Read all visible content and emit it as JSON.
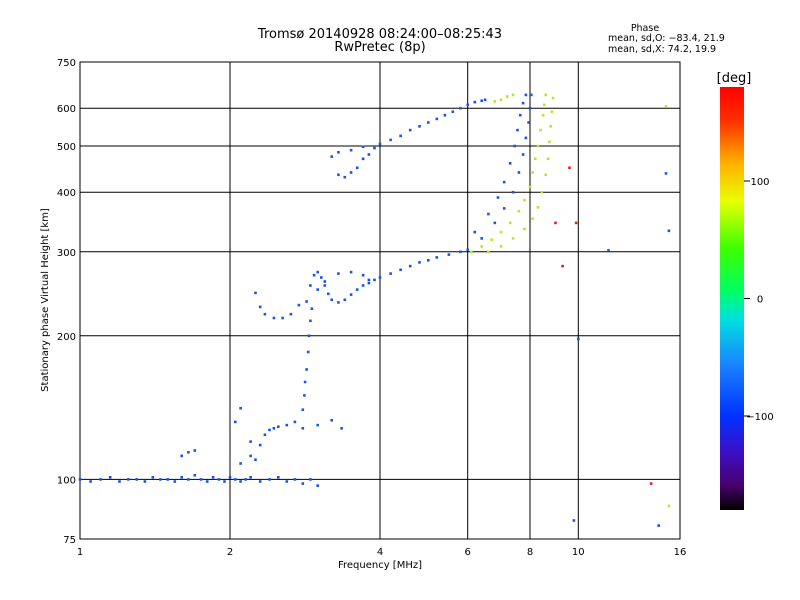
{
  "chart_data": {
    "type": "scatter",
    "title": "Tromsø 20140928 08:24:00–08:25:43",
    "subtitle": "RwPretec (8p)",
    "xlabel": "Frequency [MHz]",
    "ylabel": "Stationary phase Virtual Height [km]",
    "x_scale": "log2",
    "y_scale": "log",
    "xlim": [
      1,
      16
    ],
    "ylim": [
      75,
      750
    ],
    "x_ticks": [
      1,
      2,
      4,
      6,
      8,
      10,
      16
    ],
    "x_tick_labels": [
      "1",
      "2",
      "4",
      "6",
      "8",
      "10",
      "16"
    ],
    "y_ticks": [
      75,
      100,
      200,
      300,
      400,
      500,
      600,
      750
    ],
    "y_tick_labels": [
      "75",
      "100",
      "200",
      "300",
      "400",
      "500",
      "600",
      "750"
    ],
    "grid": true,
    "phase_info": {
      "title": "Phase",
      "line_o": "mean, sd,O: −83.4, 21.9",
      "line_x": "mean, sd,X:  74.2, 19.9"
    },
    "colorbar": {
      "label": "[deg]",
      "min": -180,
      "max": 180,
      "tick_values": [
        100,
        0,
        -100
      ],
      "tick_labels": [
        "100",
        "0",
        "−100"
      ]
    },
    "series": [
      {
        "name": "O",
        "color": "#1a55e6",
        "points": [
          [
            1.0,
            100
          ],
          [
            1.05,
            99
          ],
          [
            1.1,
            100
          ],
          [
            1.15,
            101
          ],
          [
            1.2,
            99
          ],
          [
            1.25,
            100
          ],
          [
            1.3,
            100
          ],
          [
            1.35,
            99
          ],
          [
            1.4,
            101
          ],
          [
            1.45,
            100
          ],
          [
            1.5,
            100
          ],
          [
            1.55,
            99
          ],
          [
            1.6,
            101
          ],
          [
            1.65,
            100
          ],
          [
            1.7,
            102
          ],
          [
            1.75,
            100
          ],
          [
            1.8,
            99
          ],
          [
            1.85,
            101
          ],
          [
            1.9,
            100
          ],
          [
            1.95,
            99
          ],
          [
            2.0,
            101
          ],
          [
            2.05,
            100
          ],
          [
            2.1,
            99
          ],
          [
            2.15,
            100
          ],
          [
            2.2,
            101
          ],
          [
            2.3,
            99
          ],
          [
            2.4,
            100
          ],
          [
            2.5,
            101
          ],
          [
            2.6,
            99
          ],
          [
            2.7,
            100
          ],
          [
            2.8,
            98
          ],
          [
            2.9,
            100
          ],
          [
            3.0,
            97
          ],
          [
            1.6,
            112
          ],
          [
            1.65,
            114
          ],
          [
            1.7,
            115
          ],
          [
            2.1,
            108
          ],
          [
            2.2,
            112
          ],
          [
            2.3,
            118
          ],
          [
            2.35,
            124
          ],
          [
            2.4,
            127
          ],
          [
            2.45,
            128
          ],
          [
            2.5,
            129
          ],
          [
            2.6,
            130
          ],
          [
            2.7,
            132
          ],
          [
            2.8,
            128
          ],
          [
            3.0,
            130
          ],
          [
            3.2,
            133
          ],
          [
            3.35,
            128
          ],
          [
            2.05,
            132
          ],
          [
            2.1,
            141
          ],
          [
            2.2,
            120
          ],
          [
            2.25,
            110
          ],
          [
            2.8,
            140
          ],
          [
            2.82,
            150
          ],
          [
            2.83,
            160
          ],
          [
            2.85,
            170
          ],
          [
            2.87,
            185
          ],
          [
            2.88,
            200
          ],
          [
            2.9,
            215
          ],
          [
            2.92,
            228
          ],
          [
            2.25,
            246
          ],
          [
            2.3,
            230
          ],
          [
            2.35,
            222
          ],
          [
            2.45,
            218
          ],
          [
            2.55,
            218
          ],
          [
            2.65,
            222
          ],
          [
            2.75,
            232
          ],
          [
            2.85,
            236
          ],
          [
            2.9,
            255
          ],
          [
            2.95,
            268
          ],
          [
            3.0,
            272
          ],
          [
            3.05,
            265
          ],
          [
            3.1,
            255
          ],
          [
            3.15,
            245
          ],
          [
            3.2,
            238
          ],
          [
            3.3,
            235
          ],
          [
            3.4,
            238
          ],
          [
            3.5,
            244
          ],
          [
            3.6,
            250
          ],
          [
            3.7,
            255
          ],
          [
            3.8,
            258
          ],
          [
            3.9,
            262
          ],
          [
            4.0,
            265
          ],
          [
            4.2,
            270
          ],
          [
            4.4,
            275
          ],
          [
            4.6,
            280
          ],
          [
            4.8,
            285
          ],
          [
            5.0,
            288
          ],
          [
            5.2,
            292
          ],
          [
            5.5,
            296
          ],
          [
            5.8,
            300
          ],
          [
            6.0,
            303
          ],
          [
            3.0,
            250
          ],
          [
            3.1,
            260
          ],
          [
            3.3,
            270
          ],
          [
            3.5,
            272
          ],
          [
            3.7,
            268
          ],
          [
            3.8,
            262
          ],
          [
            3.3,
            435
          ],
          [
            3.4,
            430
          ],
          [
            3.5,
            440
          ],
          [
            3.6,
            450
          ],
          [
            3.7,
            470
          ],
          [
            3.8,
            480
          ],
          [
            3.9,
            495
          ],
          [
            4.0,
            505
          ],
          [
            4.2,
            515
          ],
          [
            4.4,
            525
          ],
          [
            4.6,
            540
          ],
          [
            4.8,
            550
          ],
          [
            5.0,
            560
          ],
          [
            5.2,
            570
          ],
          [
            5.4,
            580
          ],
          [
            5.6,
            590
          ],
          [
            5.8,
            600
          ],
          [
            6.0,
            610
          ],
          [
            6.2,
            618
          ],
          [
            6.4,
            622
          ],
          [
            6.5,
            625
          ],
          [
            3.2,
            475
          ],
          [
            3.3,
            485
          ],
          [
            3.5,
            490
          ],
          [
            3.7,
            498
          ],
          [
            6.2,
            330
          ],
          [
            6.6,
            360
          ],
          [
            6.9,
            390
          ],
          [
            7.1,
            420
          ],
          [
            7.3,
            460
          ],
          [
            7.45,
            500
          ],
          [
            7.55,
            540
          ],
          [
            7.65,
            580
          ],
          [
            7.75,
            615
          ],
          [
            7.85,
            640
          ],
          [
            6.4,
            320
          ],
          [
            6.8,
            345
          ],
          [
            7.1,
            370
          ],
          [
            7.4,
            400
          ],
          [
            7.6,
            440
          ],
          [
            7.75,
            480
          ],
          [
            7.85,
            520
          ],
          [
            7.95,
            560
          ],
          [
            8.0,
            600
          ],
          [
            8.05,
            640
          ],
          [
            9.8,
            82
          ],
          [
            10.0,
            197
          ],
          [
            11.5,
            302
          ],
          [
            14.5,
            80
          ],
          [
            15.0,
            438
          ],
          [
            15.2,
            332
          ]
        ]
      },
      {
        "name": "X",
        "color": "#b4e632",
        "points": [
          [
            6.1,
            300
          ],
          [
            6.4,
            308
          ],
          [
            6.7,
            318
          ],
          [
            7.0,
            330
          ],
          [
            7.3,
            345
          ],
          [
            7.6,
            365
          ],
          [
            7.8,
            385
          ],
          [
            8.0,
            410
          ],
          [
            8.1,
            440
          ],
          [
            8.2,
            470
          ],
          [
            8.3,
            500
          ],
          [
            8.4,
            540
          ],
          [
            8.5,
            580
          ],
          [
            8.55,
            610
          ],
          [
            8.6,
            640
          ],
          [
            6.6,
            300
          ],
          [
            7.0,
            308
          ],
          [
            7.4,
            320
          ],
          [
            7.8,
            335
          ],
          [
            8.1,
            352
          ],
          [
            8.3,
            372
          ],
          [
            8.45,
            400
          ],
          [
            8.6,
            435
          ],
          [
            8.7,
            470
          ],
          [
            8.75,
            510
          ],
          [
            8.8,
            550
          ],
          [
            8.85,
            590
          ],
          [
            8.9,
            630
          ],
          [
            6.8,
            620
          ],
          [
            7.0,
            625
          ],
          [
            7.2,
            635
          ],
          [
            7.4,
            640
          ],
          [
            15.0,
            605
          ],
          [
            15.2,
            88
          ]
        ]
      },
      {
        "name": "",
        "color": "#e02020",
        "points": [
          [
            9.0,
            345
          ],
          [
            9.3,
            280
          ],
          [
            9.6,
            450
          ],
          [
            9.9,
            345
          ],
          [
            14.0,
            98
          ]
        ]
      }
    ]
  }
}
